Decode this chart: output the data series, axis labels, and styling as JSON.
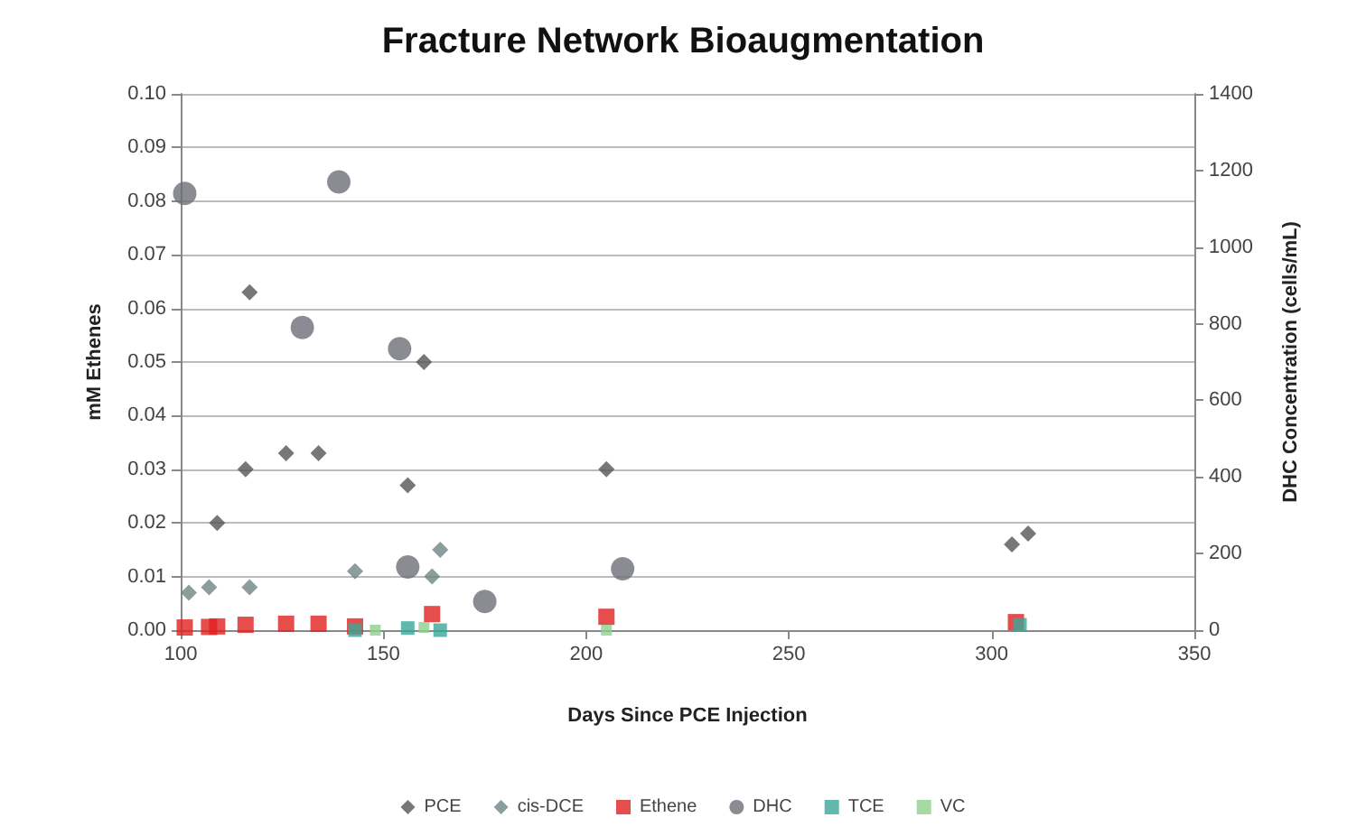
{
  "chart_data": {
    "type": "scatter",
    "title": "Fracture Network Bioaugmentation",
    "xlabel": "Days Since PCE Injection",
    "ylabel": "mM Ethenes",
    "y2label": "DHC Concentration (cells/mL)",
    "xlim": [
      100,
      350
    ],
    "xticks": [
      100,
      150,
      200,
      250,
      300,
      350
    ],
    "ylim": [
      0,
      0.1
    ],
    "yticks": [
      {
        "value": 0,
        "label": "0.00"
      },
      0.01,
      0.02,
      0.03,
      0.04,
      0.05,
      0.06,
      0.07,
      0.08,
      0.09,
      {
        "value": 0.1,
        "label": "0.10"
      }
    ],
    "y2lim": [
      0,
      1400
    ],
    "y2ticks": [
      0,
      200,
      400,
      600,
      800,
      1000,
      1200,
      1400
    ],
    "grid": "y",
    "legend": "bottom",
    "series": [
      {
        "name": "PCE",
        "color": "#555555",
        "marker": "diamond",
        "x": [
          109,
          116,
          117,
          126,
          134,
          156,
          160,
          205,
          305,
          309
        ],
        "values": [
          0.02,
          0.03,
          0.063,
          0.033,
          0.033,
          0.027,
          0.05,
          0.03,
          0.016,
          0.018
        ]
      },
      {
        "name": "cis-DCE",
        "color": "#6f8585",
        "marker": "diamond",
        "x": [
          102,
          107,
          117,
          143,
          162,
          164
        ],
        "values": [
          0.007,
          0.008,
          0.008,
          0.011,
          0.01,
          0.015
        ]
      },
      {
        "name": "Ethene",
        "color": "#e02020",
        "marker": "square",
        "x": [
          101,
          107,
          109,
          116,
          126,
          134,
          143,
          162,
          205,
          306
        ],
        "values": [
          0.0005,
          0.0006,
          0.0007,
          0.001,
          0.0012,
          0.0012,
          0.0007,
          0.003,
          0.0025,
          0.0015
        ]
      },
      {
        "name": "DHC",
        "color": "#6e6e78",
        "marker": "circle",
        "axis": "y2",
        "x": [
          101,
          139,
          130,
          154,
          156,
          175,
          209
        ],
        "values": [
          1140,
          1170,
          790,
          735,
          165,
          75,
          160
        ]
      },
      {
        "name": "TCE",
        "color": "#3aa89a",
        "marker": "square",
        "x": [
          143,
          156,
          164,
          307
        ],
        "values": [
          0.0,
          0.0004,
          0.0,
          0.001
        ]
      },
      {
        "name": "VC",
        "color": "#8fd08f",
        "marker": "square",
        "x": [
          148,
          160,
          205
        ],
        "values": [
          0.0,
          0.0005,
          0.0
        ]
      }
    ]
  }
}
